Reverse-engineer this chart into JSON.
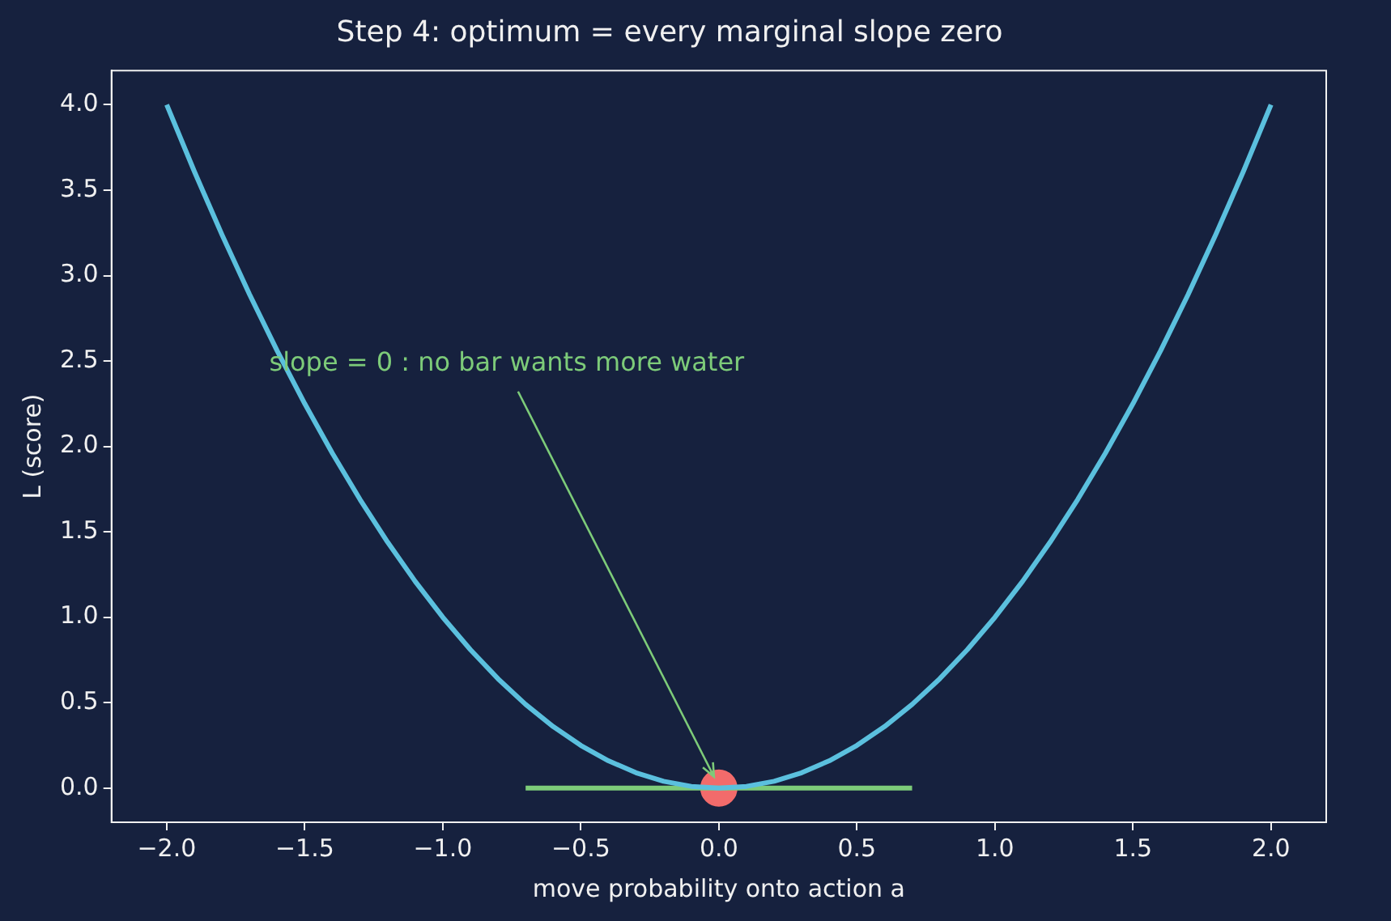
{
  "chart_data": {
    "type": "line",
    "title": "Step 4: optimum = every marginal slope zero",
    "xlabel": "move probability onto action a",
    "ylabel": "L (score)",
    "xlim": [
      -2.2,
      2.2
    ],
    "xticks": [
      {
        "value": -2,
        "label": "−2.0"
      },
      {
        "value": -1.5,
        "label": "−1.5"
      },
      {
        "value": -1,
        "label": "−1.0"
      },
      {
        "value": -0.5,
        "label": "−0.5"
      },
      {
        "value": 0,
        "label": "0.0"
      },
      {
        "value": 0.5,
        "label": "0.5"
      },
      {
        "value": 1,
        "label": "1.0"
      },
      {
        "value": 1.5,
        "label": "1.5"
      },
      {
        "value": 2,
        "label": "2.0"
      }
    ],
    "ylim": [
      -0.2,
      4.2
    ],
    "yticks": [
      {
        "value": 0,
        "label": "0.0"
      },
      {
        "value": 0.5,
        "label": "0.5"
      },
      {
        "value": 1,
        "label": "1.0"
      },
      {
        "value": 1.5,
        "label": "1.5"
      },
      {
        "value": 2,
        "label": "2.0"
      },
      {
        "value": 2.5,
        "label": "2.5"
      },
      {
        "value": 3,
        "label": "3.0"
      },
      {
        "value": 3.5,
        "label": "3.5"
      },
      {
        "value": 4,
        "label": "4.0"
      }
    ],
    "grid": false,
    "legend": false,
    "series": [
      {
        "type": "line",
        "color": "#5bc0de",
        "marker": "none",
        "x": [
          -2,
          -1.9,
          -1.8,
          -1.7,
          -1.6,
          -1.5,
          -1.4,
          -1.3,
          -1.2,
          -1.1,
          -1,
          -0.9,
          -0.8,
          -0.7,
          -0.6,
          -0.5,
          -0.4,
          -0.3,
          -0.2,
          -0.1,
          0,
          0.1,
          0.2,
          0.3,
          0.4,
          0.5,
          0.6,
          0.7,
          0.8,
          0.9,
          1,
          1.1,
          1.2,
          1.3,
          1.4,
          1.5,
          1.6,
          1.7,
          1.8,
          1.9,
          2
        ],
        "values": [
          4,
          3.61,
          3.24,
          2.89,
          2.56,
          2.25,
          1.96,
          1.69,
          1.44,
          1.21,
          1,
          0.81,
          0.64,
          0.49,
          0.36,
          0.25,
          0.16,
          0.09,
          0.04,
          0.01,
          0,
          0.01,
          0.04,
          0.09,
          0.16,
          0.25,
          0.36,
          0.49,
          0.64,
          0.81,
          1,
          1.21,
          1.44,
          1.69,
          1.96,
          2.25,
          2.56,
          2.89,
          3.24,
          3.61,
          4
        ]
      },
      {
        "type": "line",
        "color": "#7dcb79",
        "marker": "none",
        "x": [
          -0.7,
          0.7
        ],
        "values": [
          0,
          0
        ]
      },
      {
        "type": "scatter",
        "color": "#f26b6b",
        "marker": "circle",
        "x": [
          0
        ],
        "values": [
          0
        ]
      }
    ],
    "annotations": [
      {
        "text": "slope = 0 : no bar wants more water",
        "x": 0,
        "y": 0
      }
    ]
  }
}
